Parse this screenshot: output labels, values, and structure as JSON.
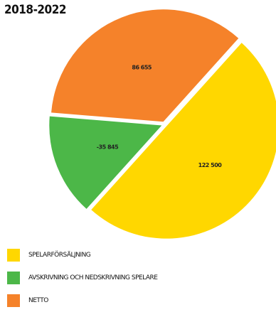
{
  "chart_data": {
    "type": "pie",
    "title": "2018-2022",
    "slices": [
      {
        "label": "SPELARFÖRSÄLJNING",
        "value": 122500,
        "display": "122 500",
        "color": "#FFD700"
      },
      {
        "label": "AVSKRIVNING OCH NEDSKRIVNING SPELARE",
        "value": 35845,
        "display": "-35 845",
        "color": "#4CB748"
      },
      {
        "label": "NETTO",
        "value": 86655,
        "display": "86 655",
        "color": "#F5822A"
      }
    ]
  }
}
